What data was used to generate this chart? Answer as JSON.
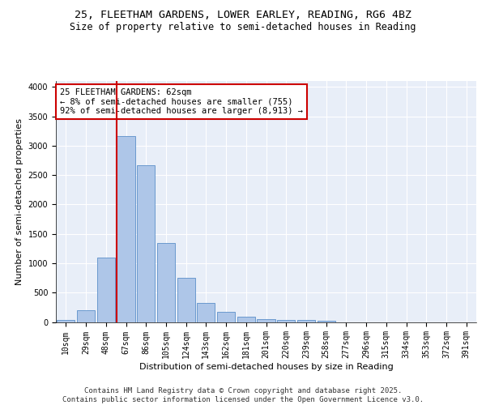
{
  "title_line1": "25, FLEETHAM GARDENS, LOWER EARLEY, READING, RG6 4BZ",
  "title_line2": "Size of property relative to semi-detached houses in Reading",
  "xlabel": "Distribution of semi-detached houses by size in Reading",
  "ylabel": "Number of semi-detached properties",
  "categories": [
    "10sqm",
    "29sqm",
    "48sqm",
    "67sqm",
    "86sqm",
    "105sqm",
    "124sqm",
    "143sqm",
    "162sqm",
    "181sqm",
    "201sqm",
    "220sqm",
    "239sqm",
    "258sqm",
    "277sqm",
    "296sqm",
    "315sqm",
    "334sqm",
    "353sqm",
    "372sqm",
    "391sqm"
  ],
  "values": [
    30,
    200,
    1090,
    3160,
    2660,
    1350,
    750,
    320,
    170,
    85,
    55,
    40,
    30,
    20,
    0,
    0,
    0,
    0,
    0,
    0,
    0
  ],
  "bar_color": "#aec6e8",
  "bar_edge_color": "#5b8fc9",
  "vline_x_index": 3,
  "vline_color": "#cc0000",
  "annotation_text": "25 FLEETHAM GARDENS: 62sqm\n← 8% of semi-detached houses are smaller (755)\n92% of semi-detached houses are larger (8,913) →",
  "annotation_box_color": "#ffffff",
  "annotation_box_edge": "#cc0000",
  "ylim": [
    0,
    4100
  ],
  "yticks": [
    0,
    500,
    1000,
    1500,
    2000,
    2500,
    3000,
    3500,
    4000
  ],
  "background_color": "#e8eef8",
  "footer_text": "Contains HM Land Registry data © Crown copyright and database right 2025.\nContains public sector information licensed under the Open Government Licence v3.0.",
  "title_fontsize": 9.5,
  "subtitle_fontsize": 8.5,
  "axis_label_fontsize": 8,
  "tick_fontsize": 7,
  "annotation_fontsize": 7.5,
  "footer_fontsize": 6.5
}
